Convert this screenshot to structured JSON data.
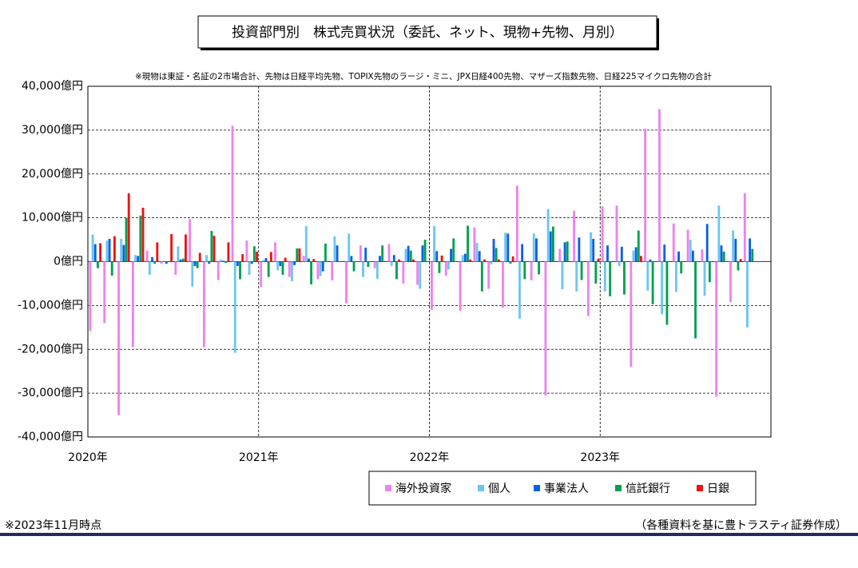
{
  "chart_data": {
    "type": "bar",
    "title": "投資部門別　株式売買状況（委託、ネット、現物+先物、月別）",
    "subtitle": "※現物は東証・名証の2市場合計、先物は日経平均先物、TOPIX先物のラージ・ミニ、JPX日経400先物、マザーズ指数先物、日経225マイクロ先物の合計",
    "note": "※2023年11月時点",
    "source": "（各種資料を基に豊トラスティ証券作成）",
    "categories": [
      "2020年",
      null,
      null,
      null,
      null,
      null,
      null,
      null,
      null,
      null,
      null,
      null,
      "2021年",
      null,
      null,
      null,
      null,
      null,
      null,
      null,
      null,
      null,
      null,
      null,
      "2022年",
      null,
      null,
      null,
      null,
      null,
      null,
      null,
      null,
      null,
      null,
      null,
      "2023年",
      null,
      null,
      null,
      null,
      null,
      null,
      null,
      null,
      null,
      null,
      null
    ],
    "ylim": [
      -40000,
      40000
    ],
    "yticks": [
      {
        "value": -40000,
        "label": "-40,000億円"
      },
      {
        "value": -30000,
        "label": "-30,000億円"
      },
      {
        "value": -20000,
        "label": "-20,000億円"
      },
      {
        "value": -10000,
        "label": "-10,000億円"
      },
      {
        "value": 0,
        "label": "0億円"
      },
      {
        "value": 10000,
        "label": "10,000億円"
      },
      {
        "value": 20000,
        "label": "20,000億円"
      },
      {
        "value": 30000,
        "label": "30,000億円"
      },
      {
        "value": 40000,
        "label": "40,000億円"
      }
    ],
    "grid": true,
    "legend": "bottom-right",
    "series": [
      {
        "name": "海外投資家",
        "color": "#ee82ee",
        "values": [
          -15800,
          -14000,
          -35000,
          -19500,
          2500,
          -500,
          -3000,
          9700,
          -19500,
          -4200,
          31000,
          4800,
          -5800,
          4400,
          -3500,
          1300,
          -4000,
          -4300,
          -9500,
          3700,
          -1500,
          4000,
          -5000,
          -5300,
          -11000,
          -3200,
          -11200,
          7800,
          -6200,
          -10500,
          17300,
          -4300,
          -30500,
          2900,
          11600,
          -12400,
          12600,
          12800,
          -24000,
          30300,
          34800,
          8700,
          7300,
          2800,
          -30800,
          -9200,
          15600,
          null
        ]
      },
      {
        "name": "個人",
        "color": "#6cc6f0",
        "values": [
          6200,
          4800,
          5200,
          1500,
          -3000,
          200,
          3500,
          -5700,
          1500,
          500,
          -20800,
          -3000,
          400,
          -2000,
          -4500,
          8100,
          -3300,
          5800,
          6400,
          -3500,
          -3900,
          -1000,
          2900,
          -6200,
          8100,
          -1800,
          1500,
          4300,
          -600,
          6600,
          -13000,
          6400,
          12000,
          -6300,
          -6800,
          6700,
          -6800,
          -1000,
          2500,
          -6600,
          -12000,
          -6900,
          5000,
          -7800,
          12800,
          7100,
          -15000,
          null
        ]
      },
      {
        "name": "事業法人",
        "color": "#0a5fe8",
        "values": [
          4000,
          5200,
          3800,
          1300,
          1000,
          -500,
          500,
          -1000,
          -500,
          200,
          -1000,
          -500,
          800,
          -1000,
          -800,
          700,
          -2200,
          3700,
          1300,
          3200,
          1300,
          1500,
          3600,
          3700,
          2400,
          2900,
          1800,
          2400,
          5200,
          6400,
          4000,
          5300,
          6900,
          4400,
          5500,
          5200,
          3700,
          3400,
          3300,
          500,
          3900,
          2300,
          2500,
          8600,
          3700,
          5200,
          5300,
          null
        ]
      },
      {
        "name": "信託銀行",
        "color": "#00a050",
        "values": [
          -1500,
          -3200,
          10000,
          10500,
          -500,
          0,
          700,
          -1500,
          7000,
          -300,
          -4000,
          3500,
          -3500,
          -3000,
          3000,
          -5200,
          4100,
          0,
          -2200,
          -1200,
          3700,
          -4000,
          2500,
          5000,
          -2600,
          5300,
          8200,
          -6800,
          3100,
          -500,
          -4000,
          -2900,
          8000,
          4600,
          -4200,
          -5000,
          -7900,
          -7500,
          7100,
          -9700,
          -14400,
          -2700,
          -17500,
          -4700,
          2300,
          -2000,
          2900,
          null
        ]
      },
      {
        "name": "日銀",
        "color": "#ee1111",
        "values": [
          4200,
          5800,
          15600,
          12300,
          4400,
          6300,
          6200,
          2000,
          5900,
          4400,
          1700,
          2300,
          2200,
          900,
          3000,
          600,
          0,
          0,
          0,
          0,
          0,
          500,
          500,
          0,
          1400,
          0,
          500,
          500,
          500,
          1200,
          0,
          0,
          0,
          0,
          0,
          700,
          0,
          0,
          1300,
          0,
          0,
          0,
          0,
          0,
          0,
          600,
          0,
          null
        ]
      }
    ]
  }
}
